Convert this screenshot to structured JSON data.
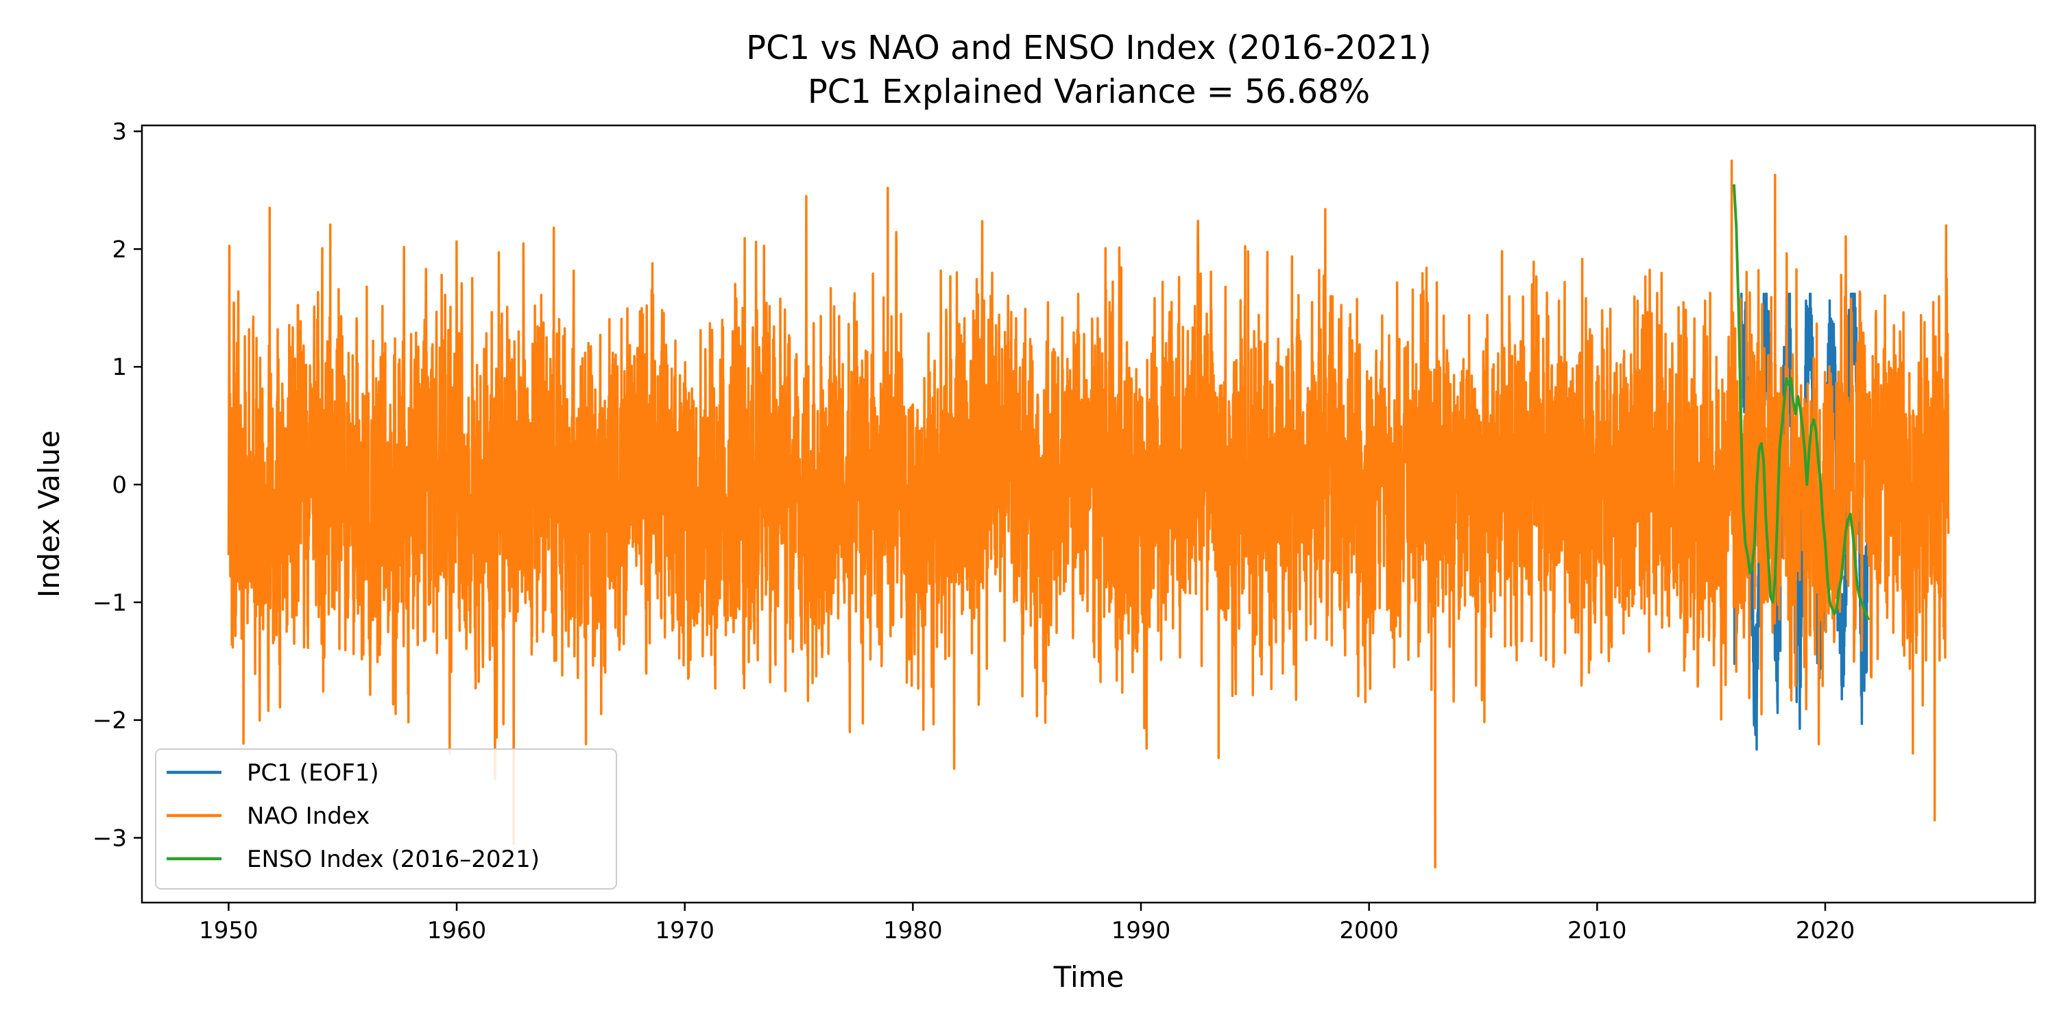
{
  "chart_data": {
    "type": "line",
    "title": "PC1 vs NAO and ENSO Index (2016-2021)",
    "subtitle": "PC1 Explained Variance = 56.68%",
    "xlabel": "Time",
    "ylabel": "Index Value",
    "xlim": [
      1946.2,
      2029.2
    ],
    "ylim": [
      -3.55,
      3.05
    ],
    "x_ticks": [
      1950,
      1960,
      1970,
      1980,
      1990,
      2000,
      2010,
      2020
    ],
    "x_tick_labels": [
      "1950",
      "1960",
      "1970",
      "1980",
      "1990",
      "2000",
      "2010",
      "2020"
    ],
    "y_ticks": [
      3,
      2,
      1,
      0,
      -1,
      -2,
      -3
    ],
    "y_tick_labels": [
      "3",
      "2",
      "1",
      "0",
      "−1",
      "−2",
      "−3"
    ],
    "grid": false,
    "legend_placement": "lower-left",
    "series": [
      {
        "name": "PC1 (EOF1)",
        "color": "#1f77b4",
        "x_range": [
          2016.0,
          2021.9
        ],
        "sampling": "daily",
        "amplitude_range": [
          -2.25,
          1.62
        ],
        "visible_peaks": [
          {
            "x": 2016.5,
            "y": 1.62
          },
          {
            "x": 2016.7,
            "y": -2.05
          },
          {
            "x": 2017.3,
            "y": 1.5
          },
          {
            "x": 2019.1,
            "y": -2.1
          },
          {
            "x": 2019.7,
            "y": 1.52
          },
          {
            "x": 2020.0,
            "y": -2.25
          },
          {
            "x": 2021.4,
            "y": 1.58
          },
          {
            "x": 2021.7,
            "y": -1.8
          }
        ]
      },
      {
        "name": "NAO Index",
        "color": "#ff7f0e",
        "x_range": [
          1950.0,
          2025.4
        ],
        "sampling": "daily",
        "typical_range": [
          -1.5,
          1.4
        ],
        "notable_extremes": [
          {
            "x": 1950.0,
            "y": -0.6
          },
          {
            "x": 1951.8,
            "y": 2.35
          },
          {
            "x": 1962.5,
            "y": -3.05
          },
          {
            "x": 1978.9,
            "y": 2.52
          },
          {
            "x": 2002.9,
            "y": -3.25
          },
          {
            "x": 2015.9,
            "y": 2.75
          },
          {
            "x": 2017.8,
            "y": 2.63
          },
          {
            "x": 2024.8,
            "y": -2.85
          },
          {
            "x": 2025.3,
            "y": 2.2
          }
        ]
      },
      {
        "name": "ENSO Index (2016–2021)",
        "color": "#2ca02c",
        "x": [
          2016.0,
          2016.1,
          2016.2,
          2016.3,
          2016.4,
          2016.5,
          2016.6,
          2016.7,
          2016.8,
          2016.9,
          2017.0,
          2017.1,
          2017.2,
          2017.3,
          2017.4,
          2017.5,
          2017.6,
          2017.7,
          2017.8,
          2017.9,
          2018.0,
          2018.1,
          2018.2,
          2018.3,
          2018.4,
          2018.5,
          2018.6,
          2018.7,
          2018.8,
          2018.9,
          2019.0,
          2019.1,
          2019.2,
          2019.3,
          2019.4,
          2019.5,
          2019.6,
          2019.7,
          2019.8,
          2019.9,
          2020.0,
          2020.1,
          2020.2,
          2020.3,
          2020.4,
          2020.5,
          2020.6,
          2020.7,
          2020.8,
          2020.9,
          2021.0,
          2021.1,
          2021.2,
          2021.3,
          2021.4,
          2021.5,
          2021.6,
          2021.7,
          2021.8,
          2021.9
        ],
        "values": [
          2.55,
          2.2,
          1.5,
          0.6,
          -0.2,
          -0.5,
          -0.6,
          -0.75,
          -0.7,
          -0.5,
          0.0,
          0.3,
          0.35,
          0.2,
          -0.3,
          -0.6,
          -0.95,
          -1.0,
          -0.8,
          -0.3,
          0.3,
          0.5,
          0.7,
          0.9,
          0.85,
          0.9,
          0.7,
          0.6,
          0.75,
          0.65,
          0.5,
          0.3,
          0.0,
          0.3,
          0.5,
          0.55,
          0.45,
          0.2,
          0.0,
          -0.3,
          -0.5,
          -0.8,
          -1.0,
          -1.05,
          -1.1,
          -1.05,
          -0.9,
          -0.8,
          -0.6,
          -0.4,
          -0.3,
          -0.25,
          -0.4,
          -0.6,
          -0.85,
          -0.95,
          -1.0,
          -1.05,
          -1.1,
          -1.15
        ]
      }
    ]
  }
}
